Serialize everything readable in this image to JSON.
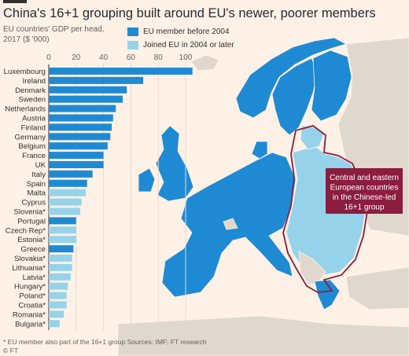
{
  "title": "China's 16+1 grouping built around EU's newer, poorer members",
  "subtitle_line1": "EU countries' GDP per head,",
  "subtitle_line2": "2017 ($ '000)",
  "legend": [
    {
      "label": "EU member before 2004",
      "color": "#1f8ad4"
    },
    {
      "label": "Joined EU in 2004 or later",
      "color": "#96d3ea"
    }
  ],
  "chart_data": {
    "type": "bar",
    "orientation": "horizontal",
    "xlim": [
      0,
      100
    ],
    "xticks": [
      0,
      20,
      40,
      60,
      80,
      100
    ],
    "categories": [
      "Luxembourg",
      "Ireland",
      "Denmark",
      "Sweden",
      "Netherlands",
      "Austria",
      "Finland",
      "Germany",
      "Belgium",
      "France",
      "UK",
      "Italy",
      "Spain",
      "Malta",
      "Cyprus",
      "Slovenia*",
      "Portugal",
      "Czech Rep*",
      "Estonia*",
      "Greece",
      "Slovakia*",
      "Lithuania*",
      "Latvia*",
      "Hungary*",
      "Poland*",
      "Croatia*",
      "Romania*",
      "Bulgaria*"
    ],
    "values": [
      105,
      69,
      57,
      54,
      49,
      47,
      46,
      45,
      43,
      40,
      40,
      32,
      28,
      27,
      24,
      23,
      20,
      20,
      20,
      18,
      17,
      17,
      16,
      14,
      13,
      13,
      11,
      8
    ],
    "groups": [
      "old",
      "old",
      "old",
      "old",
      "old",
      "old",
      "old",
      "old",
      "old",
      "old",
      "old",
      "old",
      "old",
      "new",
      "new",
      "new",
      "old",
      "new",
      "new",
      "old",
      "new",
      "new",
      "new",
      "new",
      "new",
      "new",
      "new",
      "new"
    ]
  },
  "map": {
    "annotation": [
      "Central and eastern",
      "European countries",
      "in the Chinese-led",
      "16+1 group"
    ],
    "colors": {
      "old": "#1f8ad4",
      "new": "#96d3ea",
      "non_eu": "#e0d8cc",
      "outline": "#8b1d3f",
      "sea": "#fff1e5"
    }
  },
  "footer": "* EU member also part of the 16+1 group   Sources: IMF; FT research",
  "brand": "© FT"
}
